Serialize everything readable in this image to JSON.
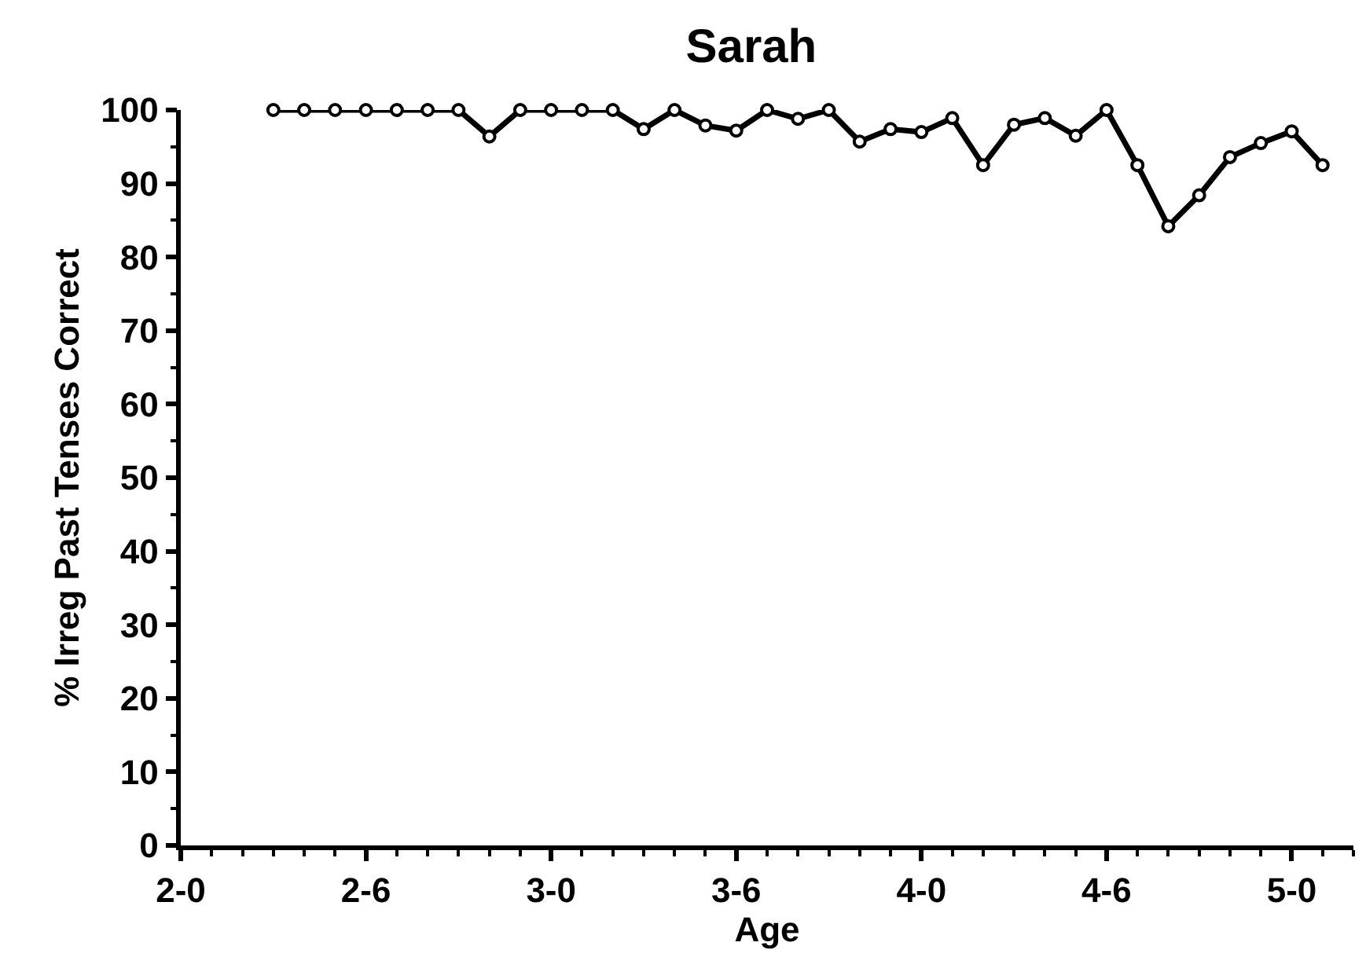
{
  "chart_data": {
    "type": "line",
    "title": "Sarah",
    "xlabel": "Age",
    "ylabel": "% Irreg Past Tenses Correct",
    "categories": [
      "2-0",
      null,
      null,
      null,
      null,
      null,
      "2-6",
      null,
      null,
      null,
      null,
      null,
      "3-0",
      null,
      null,
      null,
      null,
      null,
      "3-6",
      null,
      null,
      null,
      null,
      null,
      "4-0",
      null,
      null,
      null,
      null,
      null,
      "4-6",
      null,
      null,
      null,
      null,
      null,
      "5-0",
      null,
      null
    ],
    "series": [
      {
        "color": "#000000",
        "values": [
          null,
          null,
          null,
          100,
          100,
          100,
          100,
          100,
          100,
          100,
          96.4,
          100,
          100,
          100,
          100,
          97.4,
          100,
          97.9,
          97.2,
          100,
          98.8,
          100,
          95.7,
          97.4,
          97.0,
          98.9,
          92.5,
          98.0,
          98.9,
          96.5,
          100,
          92.5,
          84.2,
          88.4,
          93.6,
          95.5,
          97.1,
          92.5,
          null
        ]
      }
    ],
    "ylim": [
      0,
      100
    ],
    "yticks": [
      0,
      {
        "value": 5,
        "label": null
      },
      10,
      {
        "value": 15,
        "label": null
      },
      20,
      {
        "value": 25,
        "label": null
      },
      30,
      {
        "value": 35,
        "label": null
      },
      40,
      {
        "value": 45,
        "label": null
      },
      50,
      {
        "value": 55,
        "label": null
      },
      60,
      {
        "value": 65,
        "label": null
      },
      70,
      {
        "value": 75,
        "label": null
      },
      80,
      {
        "value": 85,
        "label": null
      },
      90,
      {
        "value": 95,
        "label": null
      },
      100
    ],
    "marker": "circle",
    "line_style": "solid"
  }
}
